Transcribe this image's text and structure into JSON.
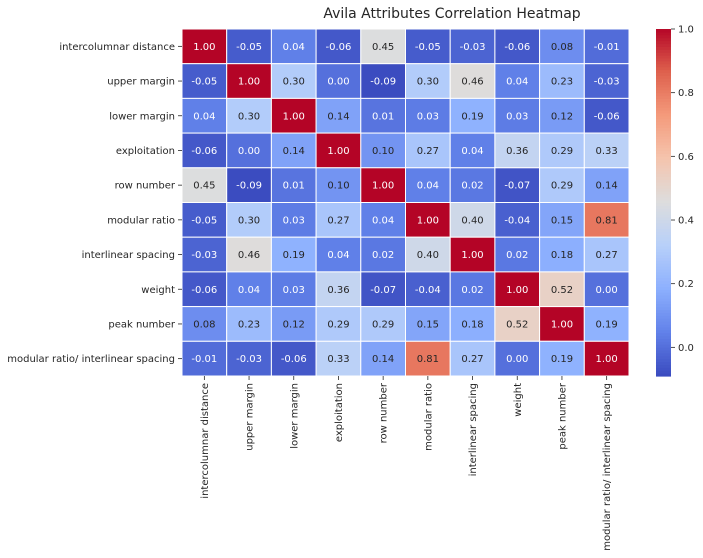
{
  "chart_data": {
    "type": "heatmap",
    "title": "Avila Attributes Correlation Heatmap",
    "labels": [
      "intercolumnar distance",
      "upper margin",
      "lower margin",
      "exploitation",
      "row number",
      "modular ratio",
      "interlinear spacing",
      "weight",
      "peak number",
      "modular ratio/ interlinear spacing"
    ],
    "matrix": [
      [
        1.0,
        -0.05,
        0.04,
        -0.06,
        0.45,
        -0.05,
        -0.03,
        -0.06,
        0.08,
        -0.01
      ],
      [
        -0.05,
        1.0,
        0.3,
        0.0,
        -0.09,
        0.3,
        0.46,
        0.04,
        0.23,
        -0.03
      ],
      [
        0.04,
        0.3,
        1.0,
        0.14,
        0.01,
        0.03,
        0.19,
        0.03,
        0.12,
        -0.06
      ],
      [
        -0.06,
        0.0,
        0.14,
        1.0,
        0.1,
        0.27,
        0.04,
        0.36,
        0.29,
        0.33
      ],
      [
        0.45,
        -0.09,
        0.01,
        0.1,
        1.0,
        0.04,
        0.02,
        -0.07,
        0.29,
        0.14
      ],
      [
        -0.05,
        0.3,
        0.03,
        0.27,
        0.04,
        1.0,
        0.4,
        -0.04,
        0.15,
        0.81
      ],
      [
        -0.03,
        0.46,
        0.19,
        0.04,
        0.02,
        0.4,
        1.0,
        0.02,
        0.18,
        0.27
      ],
      [
        -0.06,
        0.04,
        0.03,
        0.36,
        -0.07,
        -0.04,
        0.02,
        1.0,
        0.52,
        0.0
      ],
      [
        0.08,
        0.23,
        0.12,
        0.29,
        0.29,
        0.15,
        0.18,
        0.52,
        1.0,
        0.19
      ],
      [
        -0.01,
        -0.03,
        -0.06,
        0.33,
        0.14,
        0.81,
        0.27,
        0.0,
        0.19,
        1.0
      ]
    ],
    "colormap": "coolwarm",
    "vmin": -0.09,
    "vmax": 1.0,
    "colorbar_ticks": [
      -0.0,
      0.2,
      0.4,
      0.6,
      0.8,
      1.0
    ],
    "colorbar_tick_labels": [
      "0.0",
      "0.2",
      "0.4",
      "0.6",
      "0.8",
      "1.0"
    ],
    "annotation_format": "2 decimals",
    "grid": "white cell borders",
    "legend": "colorbar on right"
  }
}
